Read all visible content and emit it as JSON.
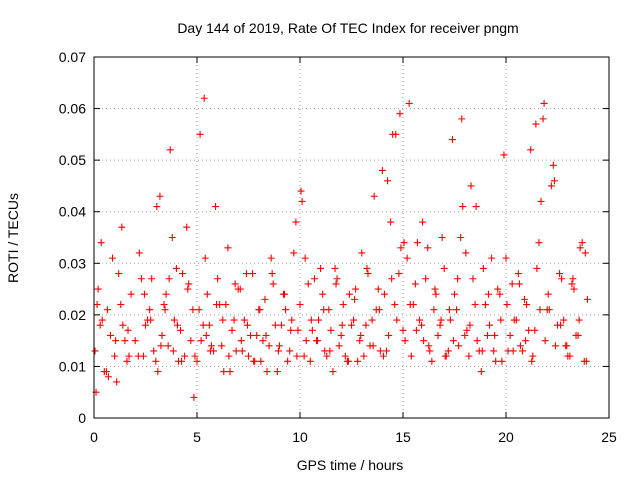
{
  "chart_data": {
    "type": "scatter",
    "title": "Day 144 of 2019, Rate Of TEC Index for receiver pngm",
    "xlabel": "GPS time / hours",
    "ylabel": "ROTI / TECUs",
    "xlim": [
      0,
      25
    ],
    "ylim": [
      0,
      0.07
    ],
    "xticks": [
      0,
      5,
      10,
      15,
      20,
      25
    ],
    "xtick_labels": [
      "0",
      "5",
      "10",
      "15",
      "20",
      "25"
    ],
    "yticks": [
      0,
      0.01,
      0.02,
      0.03,
      0.04,
      0.05,
      0.06,
      0.07
    ],
    "ytick_labels": [
      "0",
      "0.01",
      "0.02",
      "0.03",
      "0.04",
      "0.05",
      "0.06",
      "0.07"
    ],
    "grid": true,
    "marker": "+",
    "color": "#ff0000",
    "series": [
      {
        "name": "ROTI",
        "x": [
          0.05,
          0.2,
          0.35,
          0.5,
          0.65,
          0.8,
          1.0,
          1.2,
          1.4,
          1.6,
          1.8,
          2.0,
          2.2,
          2.4,
          2.6,
          2.8,
          3.0,
          3.2,
          3.4,
          3.6,
          3.8,
          4.0,
          4.2,
          4.4,
          4.6,
          4.8,
          5.0,
          5.2,
          5.4,
          5.6,
          5.8,
          6.0,
          6.2,
          6.4,
          6.6,
          6.8,
          7.0,
          7.2,
          7.4,
          7.6,
          7.8,
          8.0,
          8.2,
          8.4,
          8.6,
          8.8,
          9.0,
          9.2,
          9.4,
          9.6,
          9.8,
          10.0,
          10.2,
          10.4,
          10.6,
          10.8,
          11.0,
          11.2,
          11.4,
          11.6,
          11.8,
          12.0,
          12.2,
          12.4,
          12.6,
          12.8,
          13.0,
          13.2,
          13.4,
          13.6,
          13.8,
          14.0,
          14.2,
          14.4,
          14.6,
          14.8,
          15.0,
          15.2,
          15.4,
          15.6,
          15.8,
          16.0,
          16.2,
          16.4,
          16.6,
          16.8,
          17.0,
          17.2,
          17.4,
          17.6,
          17.8,
          18.0,
          18.2,
          18.4,
          18.6,
          18.8,
          19.0,
          19.2,
          19.4,
          19.6,
          19.8,
          20.0,
          20.2,
          20.4,
          20.6,
          20.8,
          21.0,
          21.2,
          21.4,
          21.6,
          21.8,
          22.0,
          22.2,
          22.4,
          22.6,
          22.8,
          23.0,
          23.2,
          23.4,
          23.6,
          23.8,
          23.95,
          0.1,
          0.3,
          0.6,
          0.9,
          1.1,
          1.3,
          1.5,
          1.7,
          2.3,
          2.5,
          2.7,
          2.9,
          3.1,
          3.3,
          3.5,
          3.7,
          3.9,
          4.1,
          4.3,
          4.5,
          4.7,
          4.9,
          5.1,
          5.3,
          5.5,
          5.7,
          5.9,
          6.1,
          6.3,
          6.5,
          6.7,
          6.9,
          7.1,
          7.3,
          7.5,
          7.7,
          7.9,
          8.1,
          8.3,
          8.5,
          8.7,
          8.9,
          9.1,
          9.3,
          9.5,
          9.7,
          9.9,
          10.1,
          10.3,
          10.5,
          10.7,
          10.9,
          11.1,
          11.3,
          11.5,
          11.7,
          11.9,
          12.1,
          12.3,
          12.5,
          12.7,
          12.9,
          13.1,
          13.3,
          13.5,
          13.7,
          13.9,
          14.1,
          14.3,
          14.5,
          14.7,
          14.9,
          15.1,
          15.3,
          15.5,
          15.7,
          15.9,
          16.1,
          16.3,
          16.5,
          16.7,
          16.9,
          17.1,
          17.3,
          17.5,
          17.7,
          17.9,
          18.1,
          18.3,
          18.5,
          18.7,
          18.9,
          19.1,
          19.3,
          19.5,
          19.7,
          19.9,
          20.1,
          20.3,
          20.5,
          20.7,
          20.9,
          21.1,
          21.3,
          21.5,
          21.7,
          21.9,
          22.1,
          22.3,
          22.5,
          22.7,
          22.9,
          23.1,
          23.3,
          23.5,
          23.7,
          23.9,
          0.15,
          0.4,
          0.7,
          1.05,
          1.35,
          1.65,
          2.15,
          2.45,
          2.75,
          3.05,
          3.25,
          3.45,
          3.65,
          3.85,
          4.05,
          4.25,
          4.55,
          4.85,
          5.15,
          5.35,
          5.45,
          5.65,
          5.95,
          6.25,
          6.55,
          6.85,
          7.15,
          7.45,
          7.75,
          8.05,
          8.35,
          8.65,
          8.95,
          9.25,
          9.55,
          9.85,
          10.05,
          10.25,
          10.55,
          10.85,
          11.15,
          11.45,
          11.75,
          12.05,
          12.35,
          12.65,
          12.95,
          13.25,
          13.55,
          13.85,
          14.05,
          14.25,
          14.45,
          14.65,
          14.85,
          15.05,
          15.35,
          15.65,
          15.95,
          16.25,
          16.55,
          16.85,
          17.05,
          17.25,
          17.45,
          17.65,
          17.85,
          18.05,
          18.25,
          18.55,
          18.85,
          19.15,
          19.45,
          19.75,
          20.05,
          20.35,
          20.65,
          20.95,
          21.25,
          21.45,
          21.65,
          21.85,
          22.05,
          22.35,
          22.65,
          22.95,
          23.25,
          23.55,
          23.85
        ],
        "y": [
          0.013,
          0.025,
          0.034,
          0.009,
          0.021,
          0.016,
          0.012,
          0.028,
          0.018,
          0.011,
          0.024,
          0.015,
          0.032,
          0.012,
          0.019,
          0.027,
          0.011,
          0.043,
          0.022,
          0.014,
          0.035,
          0.029,
          0.017,
          0.012,
          0.026,
          0.021,
          0.011,
          0.015,
          0.031,
          0.018,
          0.013,
          0.027,
          0.014,
          0.022,
          0.009,
          0.019,
          0.025,
          0.013,
          0.028,
          0.016,
          0.011,
          0.021,
          0.015,
          0.009,
          0.031,
          0.018,
          0.014,
          0.024,
          0.011,
          0.019,
          0.038,
          0.022,
          0.012,
          0.026,
          0.017,
          0.015,
          0.029,
          0.013,
          0.021,
          0.009,
          0.027,
          0.016,
          0.012,
          0.024,
          0.019,
          0.011,
          0.032,
          0.018,
          0.014,
          0.043,
          0.025,
          0.048,
          0.013,
          0.038,
          0.022,
          0.028,
          0.017,
          0.031,
          0.012,
          0.026,
          0.019,
          0.015,
          0.033,
          0.011,
          0.024,
          0.018,
          0.029,
          0.013,
          0.054,
          0.021,
          0.035,
          0.016,
          0.012,
          0.027,
          0.015,
          0.009,
          0.022,
          0.018,
          0.013,
          0.025,
          0.011,
          0.031,
          0.016,
          0.019,
          0.028,
          0.013,
          0.022,
          0.052,
          0.017,
          0.034,
          0.058,
          0.021,
          0.045,
          0.014,
          0.028,
          0.019,
          0.012,
          0.026,
          0.016,
          0.033,
          0.011,
          0.023,
          0.005,
          0.018,
          0.009,
          0.031,
          0.007,
          0.022,
          0.015,
          0.012,
          0.027,
          0.018,
          0.021,
          0.013,
          0.009,
          0.016,
          0.024,
          0.052,
          0.019,
          0.011,
          0.028,
          0.037,
          0.015,
          0.012,
          0.021,
          0.018,
          0.024,
          0.014,
          0.041,
          0.022,
          0.009,
          0.033,
          0.017,
          0.013,
          0.025,
          0.019,
          0.012,
          0.028,
          0.016,
          0.011,
          0.023,
          0.014,
          0.026,
          0.009,
          0.018,
          0.021,
          0.013,
          0.032,
          0.017,
          0.042,
          0.015,
          0.011,
          0.027,
          0.019,
          0.024,
          0.012,
          0.017,
          0.029,
          0.014,
          0.022,
          0.011,
          0.018,
          0.025,
          0.015,
          0.012,
          0.028,
          0.019,
          0.021,
          0.013,
          0.024,
          0.016,
          0.055,
          0.019,
          0.033,
          0.015,
          0.061,
          0.022,
          0.034,
          0.018,
          0.027,
          0.013,
          0.021,
          0.016,
          0.035,
          0.012,
          0.019,
          0.024,
          0.014,
          0.041,
          0.017,
          0.045,
          0.022,
          0.013,
          0.029,
          0.016,
          0.031,
          0.011,
          0.024,
          0.051,
          0.013,
          0.026,
          0.019,
          0.014,
          0.023,
          0.017,
          0.012,
          0.029,
          0.042,
          0.015,
          0.021,
          0.049,
          0.018,
          0.027,
          0.014,
          0.012,
          0.025,
          0.016,
          0.034,
          0.011,
          0.022,
          0.019,
          0.008,
          0.015,
          0.037,
          0.017,
          0.012,
          0.024,
          0.019,
          0.041,
          0.014,
          0.021,
          0.027,
          0.013,
          0.018,
          0.011,
          0.025,
          0.004,
          0.055,
          0.062,
          0.016,
          0.013,
          0.022,
          0.019,
          0.012,
          0.026,
          0.015,
          0.018,
          0.011,
          0.021,
          0.016,
          0.028,
          0.013,
          0.024,
          0.017,
          0.012,
          0.044,
          0.031,
          0.019,
          0.015,
          0.021,
          0.013,
          0.026,
          0.018,
          0.011,
          0.023,
          0.016,
          0.029,
          0.014,
          0.021,
          0.012,
          0.046,
          0.027,
          0.055,
          0.059,
          0.034,
          0.022,
          0.017,
          0.038,
          0.014,
          0.025,
          0.019,
          0.012,
          0.021,
          0.015,
          0.027,
          0.058,
          0.032,
          0.018,
          0.041,
          0.013,
          0.024,
          0.016,
          0.019,
          0.022,
          0.013,
          0.026,
          0.015,
          0.011,
          0.057,
          0.021,
          0.061,
          0.024,
          0.046,
          0.018,
          0.014,
          0.027,
          0.019,
          0.032
        ]
      }
    ]
  }
}
